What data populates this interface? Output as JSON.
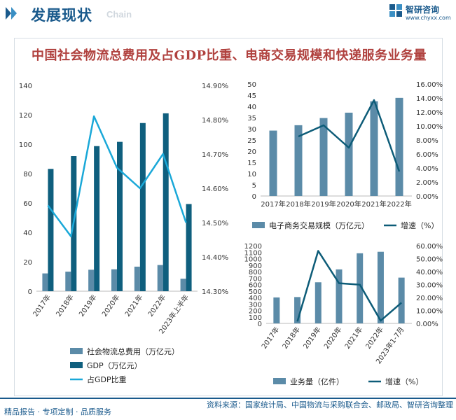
{
  "header": {
    "title": "发展现状",
    "subtitle_en": "Chain",
    "brand_name": "智研咨询",
    "brand_url": "www.chyxx.com"
  },
  "main_title": "中国社会物流总费用及占GDP比重、电商交易规模和快递服务业务量",
  "footer": {
    "left": "精品报告 · 专项定制 · 品质服务",
    "right": "资料来源：国家统计局、中国物流与采购联合会、邮政局、智研咨询整理"
  },
  "watermark": "智研咨询",
  "colors": {
    "brand": "#1a5a8c",
    "bar_light": "#5b8ba8",
    "bar_dark": "#0f5f7e",
    "line_cyan": "#1aa8d8",
    "line_dark": "#0d5c78",
    "title_red": "#b0413e"
  },
  "chart_data": [
    {
      "type": "bar",
      "categories": [
        "2017年",
        "2018年",
        "2019年",
        "2020年",
        "2021年",
        "2022年",
        "2023年上半年"
      ],
      "series": [
        {
          "name": "社会物流总费用（万亿元）",
          "values": [
            12.1,
            13.3,
            14.6,
            14.9,
            16.7,
            17.8,
            8.5
          ],
          "axis": "left"
        },
        {
          "name": "GDP（万亿元）",
          "values": [
            83.2,
            91.9,
            98.7,
            101.6,
            114.4,
            121.0,
            59.3
          ],
          "axis": "left"
        },
        {
          "name": "占GDP比重",
          "type": "line",
          "values": [
            14.55,
            14.46,
            14.81,
            14.66,
            14.6,
            14.7,
            14.5
          ],
          "axis": "right"
        }
      ],
      "y_left": {
        "ticks": [
          0,
          20,
          40,
          60,
          80,
          100,
          120,
          140
        ],
        "ylim": [
          0,
          140
        ]
      },
      "y_right": {
        "ticks": [
          "14.30%",
          "14.40%",
          "14.50%",
          "14.60%",
          "14.70%",
          "14.80%",
          "14.90%"
        ],
        "ylim": [
          14.3,
          14.9
        ]
      },
      "legend_position": "bottom"
    },
    {
      "type": "bar",
      "categories": [
        "2017年",
        "2018年",
        "2019年",
        "2020年",
        "2021年",
        "2022年"
      ],
      "series": [
        {
          "name": "电子商务交易规模（万亿元）",
          "values": [
            29.2,
            31.6,
            34.8,
            37.2,
            42.3,
            43.8
          ],
          "axis": "left"
        },
        {
          "name": "增速（%）",
          "type": "line",
          "values": [
            null,
            8.5,
            10.1,
            6.9,
            13.7,
            3.5
          ],
          "axis": "right"
        }
      ],
      "y_left": {
        "ticks": [
          0,
          5,
          10,
          15,
          20,
          25,
          30,
          35,
          40,
          45,
          50
        ],
        "ylim": [
          0,
          50
        ]
      },
      "y_right": {
        "ticks": [
          "0.00%",
          "2.00%",
          "4.00%",
          "6.00%",
          "8.00%",
          "10.00%",
          "12.00%",
          "14.00%",
          "16.00%"
        ],
        "ylim": [
          0,
          16
        ]
      },
      "legend_position": "bottom"
    },
    {
      "type": "bar",
      "categories": [
        "2017年",
        "2018年",
        "2019年",
        "2020年",
        "2021年",
        "2022年",
        "2023年1-7月"
      ],
      "series": [
        {
          "name": "业务量（亿件）",
          "values": [
            401,
            407,
            635,
            834,
            1083,
            1106,
            707
          ],
          "axis": "left"
        },
        {
          "name": "增速（%）",
          "type": "line",
          "values": [
            null,
            1.5,
            56.0,
            31.0,
            29.9,
            2.1,
            16.0
          ],
          "axis": "right"
        }
      ],
      "y_left": {
        "ticks": [
          0,
          100,
          200,
          300,
          400,
          500,
          600,
          700,
          800,
          900,
          1000,
          1100,
          1200
        ],
        "ylim": [
          0,
          1200
        ]
      },
      "y_right": {
        "ticks": [
          "0.00%",
          "10.00%",
          "20.00%",
          "30.00%",
          "40.00%",
          "50.00%",
          "60.00%"
        ],
        "ylim": [
          0,
          60
        ]
      },
      "legend_position": "bottom"
    }
  ]
}
